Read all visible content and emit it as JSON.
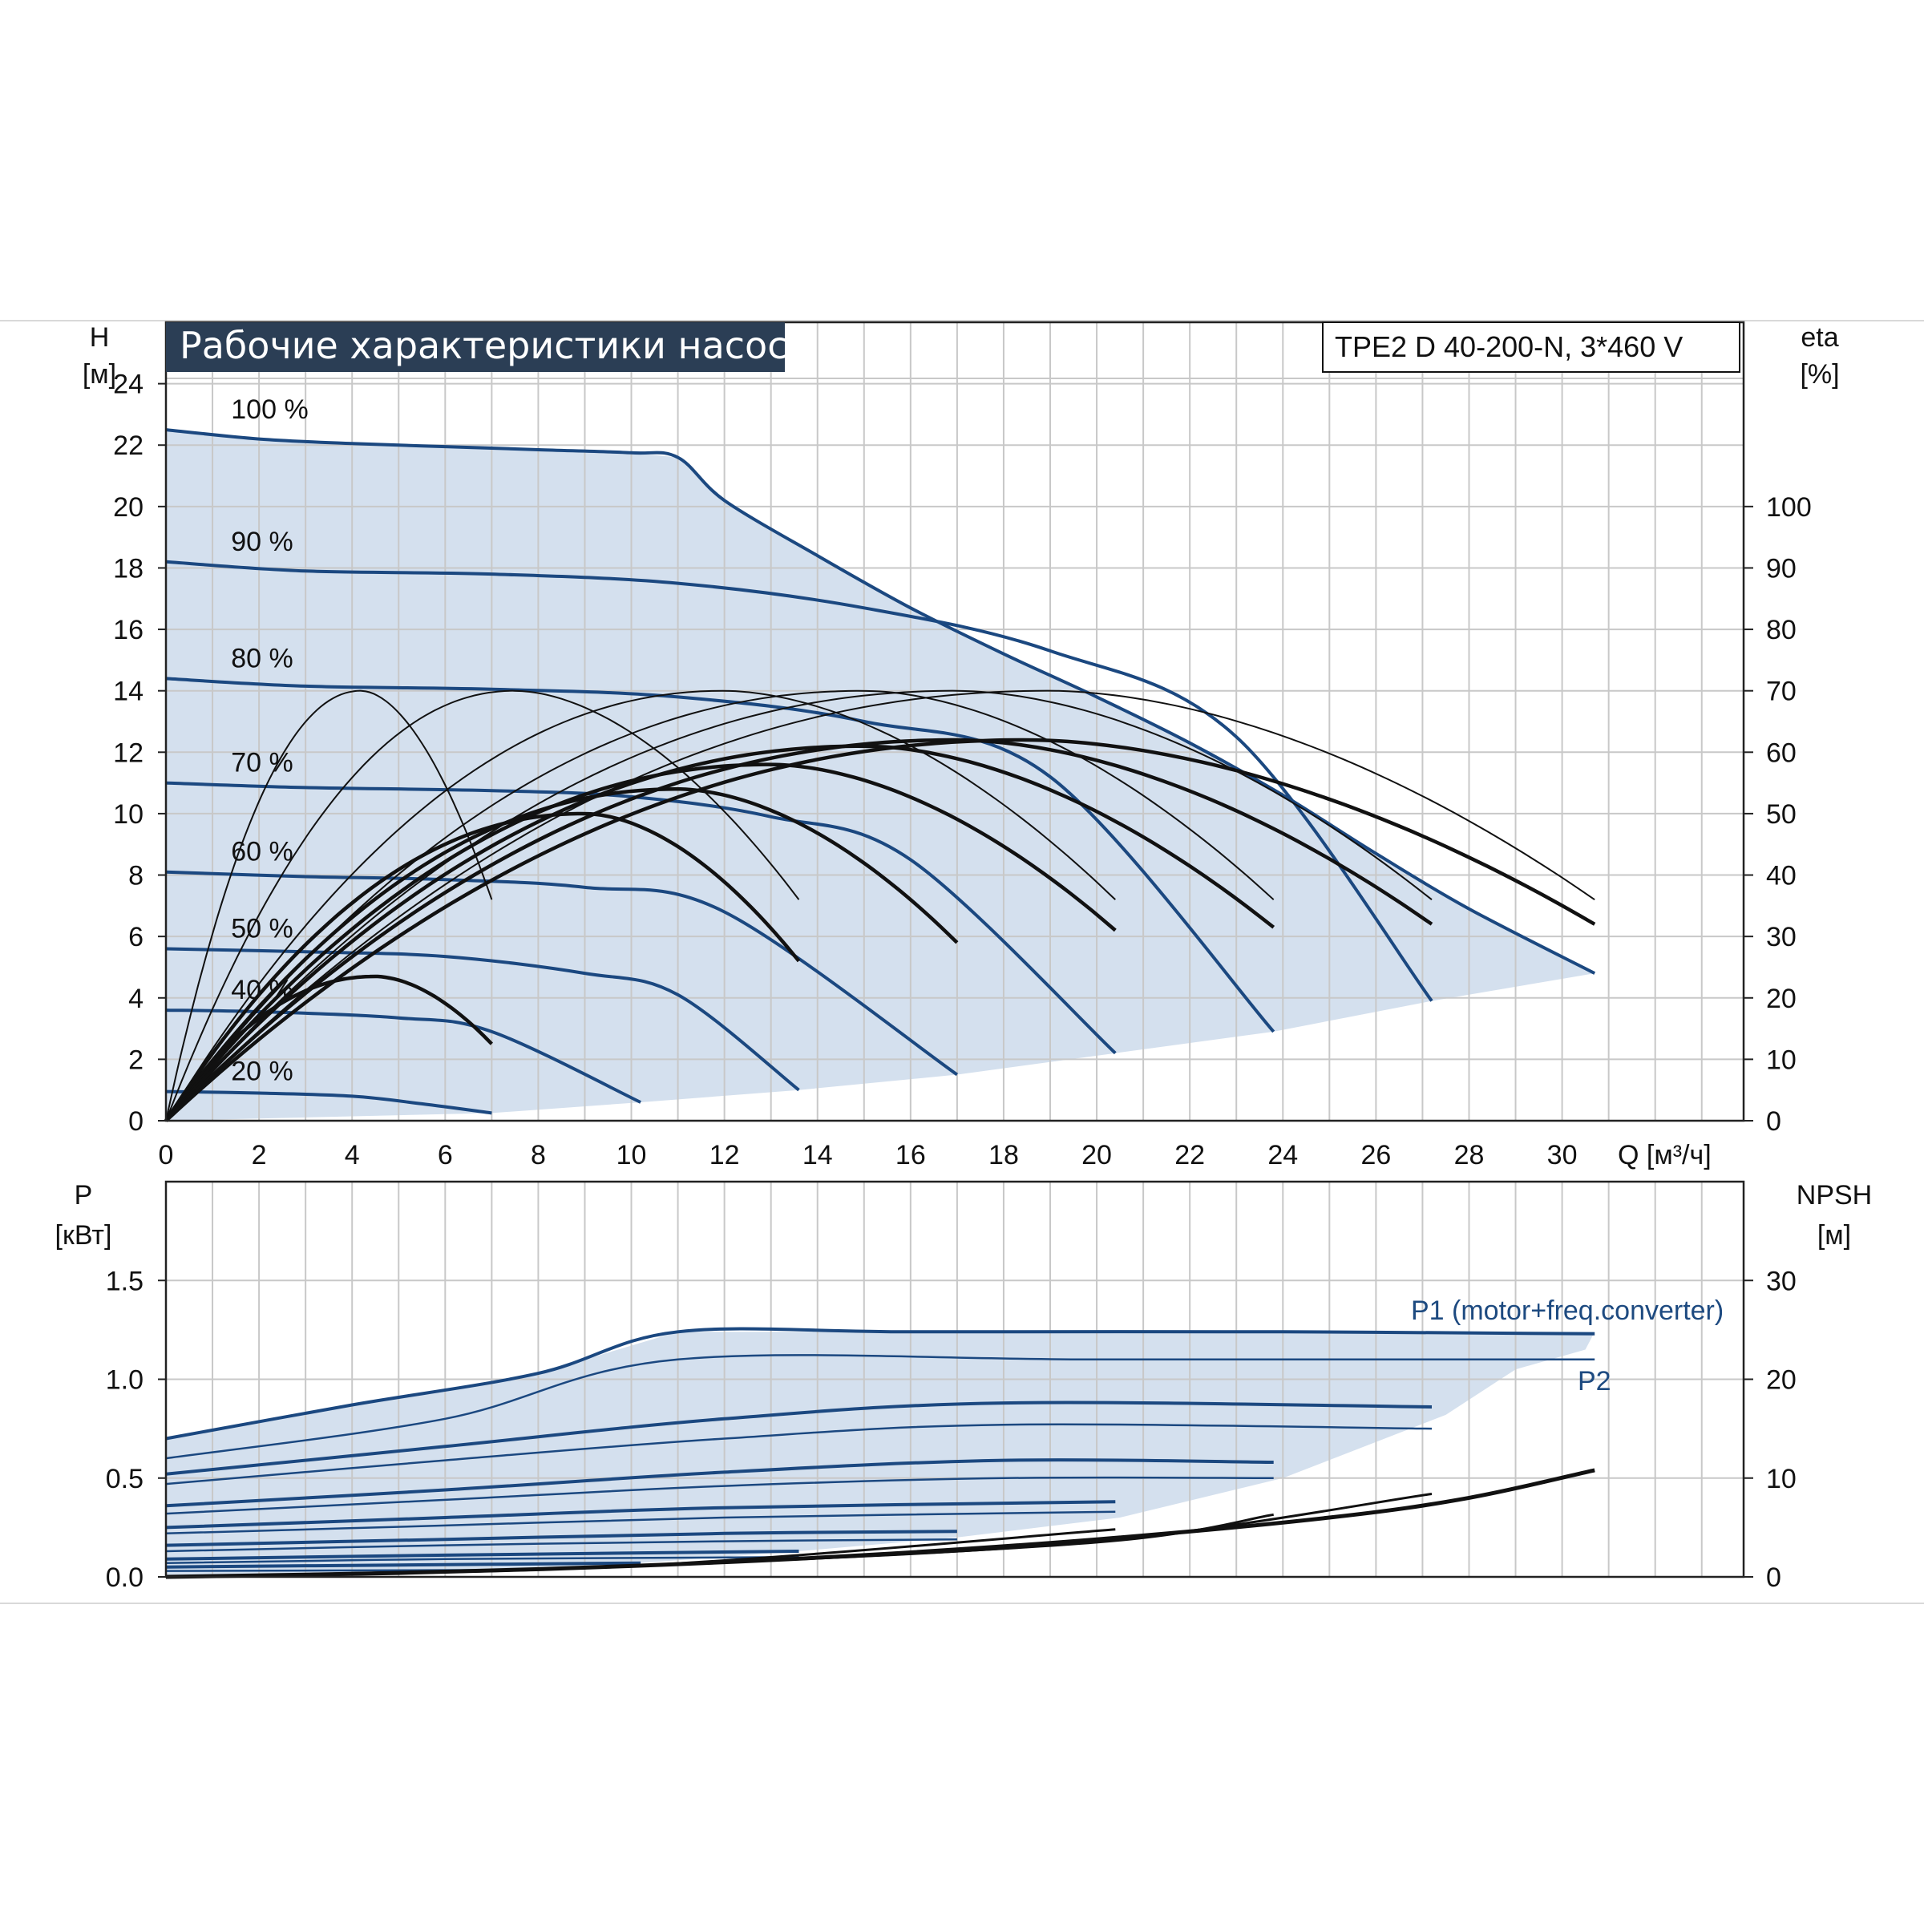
{
  "chart_data": [
    {
      "type": "line",
      "title": "Рабочие характеристики насоса",
      "model": "TPE2 D 40-200-N, 3*460 V",
      "ylabel": "H",
      "yunit": "[м]",
      "y2label": "eta",
      "y2unit": "[%]",
      "xlabel": "Q [м³/ч]",
      "xlim": [
        0,
        33.9
      ],
      "ylim": [
        0,
        26
      ],
      "y2lim": [
        0,
        130
      ],
      "x_ticks": [
        "0",
        "2",
        "4",
        "6",
        "8",
        "10",
        "12",
        "14",
        "16",
        "18",
        "20",
        "22",
        "24",
        "26",
        "28",
        "30"
      ],
      "y_ticks": [
        "0",
        "2",
        "4",
        "6",
        "8",
        "10",
        "12",
        "14",
        "16",
        "18",
        "20",
        "22",
        "24"
      ],
      "y2_ticks": [
        "0",
        "10",
        "20",
        "30",
        "40",
        "50",
        "60",
        "70",
        "80",
        "90",
        "100"
      ],
      "grid": true,
      "colors": {
        "curve": "#1b4880",
        "fill": "#d4e0ee",
        "efficiency": "#111111",
        "title_bg": "#2b3e55"
      },
      "operating_area": [
        [
          0,
          22.5
        ],
        [
          2,
          22.2
        ],
        [
          4,
          22.05
        ],
        [
          6,
          21.95
        ],
        [
          8,
          21.85
        ],
        [
          10,
          21.75
        ],
        [
          11,
          21.6
        ],
        [
          12,
          20.2
        ],
        [
          14,
          18.4
        ],
        [
          16,
          16.7
        ],
        [
          18,
          15.2
        ],
        [
          20,
          13.8
        ],
        [
          22,
          12.3
        ],
        [
          24,
          10.6
        ],
        [
          26,
          8.7
        ],
        [
          28,
          6.9
        ],
        [
          30.7,
          4.8
        ],
        [
          27.2,
          3.9
        ],
        [
          23.8,
          2.9
        ],
        [
          20.4,
          2.2
        ],
        [
          17,
          1.5
        ],
        [
          13.6,
          1.0
        ],
        [
          10.2,
          0.6
        ],
        [
          7,
          0.25
        ],
        [
          0,
          0
        ]
      ],
      "series": [
        {
          "name": "100 %",
          "values": [
            [
              0,
              22.5
            ],
            [
              2,
              22.2
            ],
            [
              4,
              22.05
            ],
            [
              6,
              21.95
            ],
            [
              8,
              21.85
            ],
            [
              10,
              21.75
            ],
            [
              11,
              21.6
            ],
            [
              12,
              20.2
            ],
            [
              14,
              18.4
            ],
            [
              16,
              16.7
            ],
            [
              18,
              15.2
            ],
            [
              20,
              13.8
            ],
            [
              22,
              12.3
            ],
            [
              24,
              10.6
            ],
            [
              26,
              8.7
            ],
            [
              28,
              6.9
            ],
            [
              30.7,
              4.8
            ]
          ]
        },
        {
          "name": "90 %",
          "values": [
            [
              0,
              18.2
            ],
            [
              3,
              17.9
            ],
            [
              7,
              17.8
            ],
            [
              11,
              17.5
            ],
            [
              15,
              16.7
            ],
            [
              19,
              15.3
            ],
            [
              23,
              12.5
            ],
            [
              27.2,
              3.9
            ]
          ]
        },
        {
          "name": "80 %",
          "values": [
            [
              0,
              14.4
            ],
            [
              3,
              14.15
            ],
            [
              7,
              14.05
            ],
            [
              11,
              13.8
            ],
            [
              15,
              13.0
            ],
            [
              19,
              11.2
            ],
            [
              23.8,
              2.9
            ]
          ]
        },
        {
          "name": "70 %",
          "values": [
            [
              0,
              11.0
            ],
            [
              3,
              10.85
            ],
            [
              7,
              10.75
            ],
            [
              10,
              10.55
            ],
            [
              13,
              9.9
            ],
            [
              16,
              8.5
            ],
            [
              20.4,
              2.2
            ]
          ]
        },
        {
          "name": "60 %",
          "values": [
            [
              0,
              8.1
            ],
            [
              3,
              7.95
            ],
            [
              6,
              7.85
            ],
            [
              9,
              7.6
            ],
            [
              12,
              6.8
            ],
            [
              17,
              1.5
            ]
          ]
        },
        {
          "name": "50 %",
          "values": [
            [
              0,
              5.6
            ],
            [
              3,
              5.5
            ],
            [
              6,
              5.35
            ],
            [
              9,
              4.8
            ],
            [
              11,
              4.1
            ],
            [
              13.6,
              1.0
            ]
          ]
        },
        {
          "name": "40 %",
          "values": [
            [
              0,
              3.6
            ],
            [
              2,
              3.55
            ],
            [
              5,
              3.35
            ],
            [
              7,
              2.9
            ],
            [
              10.2,
              0.6
            ]
          ]
        },
        {
          "name": "20 %",
          "values": [
            [
              0,
              0.95
            ],
            [
              2,
              0.9
            ],
            [
              4,
              0.8
            ],
            [
              5.5,
              0.55
            ],
            [
              7,
              0.25
            ]
          ]
        }
      ],
      "efficiency_series": [
        {
          "values": [
            [
              0,
              0
            ],
            [
              4.2,
              70
            ],
            [
              7,
              36
            ]
          ]
        },
        {
          "values": [
            [
              0,
              0
            ],
            [
              7.5,
              70
            ],
            [
              13.6,
              36
            ]
          ]
        },
        {
          "values": [
            [
              0,
              0
            ],
            [
              12,
              70
            ],
            [
              20.4,
              36
            ]
          ]
        },
        {
          "values": [
            [
              0,
              0
            ],
            [
              15,
              70
            ],
            [
              23.8,
              36
            ]
          ]
        },
        {
          "values": [
            [
              0,
              0
            ],
            [
              17,
              70
            ],
            [
              27.2,
              36
            ]
          ]
        },
        {
          "values": [
            [
              0,
              0
            ],
            [
              19,
              70
            ],
            [
              30.7,
              36
            ]
          ]
        },
        {
          "values": [
            [
              0,
              0
            ],
            [
              4.5,
              23.5
            ],
            [
              7,
              12.5
            ]
          ]
        },
        {
          "values": [
            [
              0,
              0
            ],
            [
              9,
              50
            ],
            [
              13.6,
              26
            ]
          ]
        },
        {
          "values": [
            [
              0,
              0
            ],
            [
              11,
              54
            ],
            [
              17,
              29
            ]
          ]
        },
        {
          "values": [
            [
              0,
              0
            ],
            [
              13,
              58
            ],
            [
              20.4,
              31
            ]
          ]
        },
        {
          "values": [
            [
              0,
              0
            ],
            [
              15,
              61
            ],
            [
              23.8,
              31.5
            ]
          ]
        },
        {
          "values": [
            [
              0,
              0
            ],
            [
              17,
              62
            ],
            [
              27.2,
              32
            ]
          ]
        },
        {
          "values": [
            [
              0,
              0
            ],
            [
              18.5,
              62
            ],
            [
              30.7,
              32
            ]
          ]
        }
      ],
      "labels": [
        "100 %",
        "90 %",
        "80 %",
        "70 %",
        "60 %",
        "50 %",
        "40 %",
        "20 %"
      ]
    },
    {
      "type": "line",
      "ylabel": "P",
      "yunit": "[кВт]",
      "y2label": "NPSH",
      "y2unit": "[м]",
      "xlim": [
        0,
        33.9
      ],
      "ylim": [
        0,
        2.0
      ],
      "y2lim": [
        0,
        40
      ],
      "y_ticks": [
        "0.0",
        "0.5",
        "1.0",
        "1.5"
      ],
      "y2_ticks": [
        "0",
        "10",
        "20",
        "30"
      ],
      "grid": true,
      "annotations": {
        "p1": "P1 (motor+freq.converter)",
        "p2": "P2"
      },
      "operating_area": [
        [
          0,
          0.7
        ],
        [
          4,
          0.87
        ],
        [
          8,
          1.03
        ],
        [
          11,
          1.24
        ],
        [
          16,
          1.24
        ],
        [
          24,
          1.24
        ],
        [
          30.7,
          1.24
        ],
        [
          30.5,
          1.15
        ],
        [
          29,
          1.05
        ],
        [
          27.5,
          0.82
        ],
        [
          24,
          0.5
        ],
        [
          20.5,
          0.3
        ],
        [
          17,
          0.2
        ],
        [
          13.6,
          0.13
        ],
        [
          10.2,
          0.07
        ],
        [
          7,
          0.035
        ],
        [
          0,
          0.0
        ]
      ],
      "power_series": [
        {
          "name": "P1",
          "values": [
            [
              0,
              0.7
            ],
            [
              4,
              0.87
            ],
            [
              8,
              1.03
            ],
            [
              11,
              1.24
            ],
            [
              16,
              1.24
            ],
            [
              24,
              1.24
            ],
            [
              30.7,
              1.23
            ]
          ]
        },
        {
          "name": "P2",
          "values": [
            [
              0,
              0.6
            ],
            [
              6,
              0.8
            ],
            [
              11,
              1.1
            ],
            [
              20,
              1.1
            ],
            [
              30.7,
              1.1
            ]
          ]
        },
        {
          "values": [
            [
              0,
              0.52
            ],
            [
              6,
              0.66
            ],
            [
              12,
              0.8
            ],
            [
              18,
              0.88
            ],
            [
              27.2,
              0.86
            ]
          ]
        },
        {
          "values": [
            [
              0,
              0.47
            ],
            [
              6,
              0.59
            ],
            [
              12,
              0.7
            ],
            [
              18,
              0.77
            ],
            [
              27.2,
              0.75
            ]
          ]
        },
        {
          "values": [
            [
              0,
              0.36
            ],
            [
              6,
              0.44
            ],
            [
              12,
              0.53
            ],
            [
              18,
              0.59
            ],
            [
              23.8,
              0.58
            ]
          ]
        },
        {
          "values": [
            [
              0,
              0.32
            ],
            [
              6,
              0.39
            ],
            [
              12,
              0.46
            ],
            [
              18,
              0.5
            ],
            [
              23.8,
              0.5
            ]
          ]
        },
        {
          "values": [
            [
              0,
              0.25
            ],
            [
              6,
              0.3
            ],
            [
              12,
              0.35
            ],
            [
              20.4,
              0.38
            ]
          ]
        },
        {
          "values": [
            [
              0,
              0.22
            ],
            [
              6,
              0.26
            ],
            [
              12,
              0.3
            ],
            [
              20.4,
              0.33
            ]
          ]
        },
        {
          "values": [
            [
              0,
              0.16
            ],
            [
              6,
              0.19
            ],
            [
              12,
              0.22
            ],
            [
              17,
              0.23
            ]
          ]
        },
        {
          "values": [
            [
              0,
              0.13
            ],
            [
              6,
              0.16
            ],
            [
              12,
              0.18
            ],
            [
              17,
              0.19
            ]
          ]
        },
        {
          "values": [
            [
              0,
              0.09
            ],
            [
              6,
              0.11
            ],
            [
              13.6,
              0.13
            ]
          ]
        },
        {
          "values": [
            [
              0,
              0.07
            ],
            [
              6,
              0.09
            ],
            [
              13.6,
              0.1
            ]
          ]
        },
        {
          "values": [
            [
              0,
              0.05
            ],
            [
              5,
              0.06
            ],
            [
              10.2,
              0.07
            ]
          ]
        },
        {
          "values": [
            [
              0,
              0.03
            ],
            [
              7,
              0.035
            ]
          ]
        }
      ],
      "npsh_series": [
        {
          "values": [
            [
              0,
              0
            ],
            [
              5,
              0.4
            ],
            [
              10,
              1.1
            ],
            [
              15,
              2.2
            ],
            [
              20,
              3.8
            ],
            [
              25,
              6.0
            ],
            [
              28,
              8.0
            ],
            [
              30.7,
              10.8
            ]
          ]
        },
        {
          "values": [
            [
              0,
              0
            ],
            [
              10,
              1.1
            ],
            [
              20,
              3.6
            ],
            [
              27.2,
              8.4
            ]
          ]
        },
        {
          "values": [
            [
              0,
              0
            ],
            [
              10,
              1.1
            ],
            [
              20,
              3.5
            ],
            [
              23.8,
              6.3
            ]
          ]
        },
        {
          "values": [
            [
              0,
              0
            ],
            [
              10,
              1.1
            ],
            [
              20.4,
              4.8
            ]
          ]
        }
      ]
    }
  ]
}
